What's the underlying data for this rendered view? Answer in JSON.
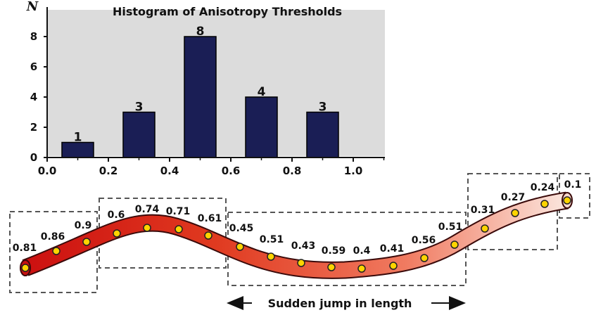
{
  "chart_data": {
    "type": "bar",
    "title": "Histogram of Anisotropy Thresholds",
    "ylabel": "N",
    "xlabel": "",
    "x": [
      0.1,
      0.3,
      0.5,
      0.7,
      0.9
    ],
    "values": [
      1,
      3,
      8,
      4,
      3
    ],
    "data_labels": [
      "1",
      "3",
      "8",
      "4",
      "3"
    ],
    "xlim": [
      0.0,
      1.1
    ],
    "ylim": [
      0,
      10
    ],
    "xticks": [
      "0.0",
      "0.2",
      "0.4",
      "0.6",
      "0.8",
      "1.0"
    ],
    "yticks": [
      "0",
      "2",
      "4",
      "6",
      "8"
    ],
    "grid": false,
    "colors": {
      "bar": "#1a1e55",
      "plot_bg": "#dcdcdc"
    }
  },
  "filament": {
    "segment_values": [
      "0.81",
      "0.86",
      "0.9",
      "0.6",
      "0.74",
      "0.71",
      "0.61",
      "0.45",
      "0.51",
      "0.43",
      "0.59",
      "0.4",
      "0.41",
      "0.56",
      "0.51",
      "0.31",
      "0.27",
      "0.24",
      "0.1"
    ],
    "caption": "Sudden jump in length",
    "colors": {
      "tube_dark": "#d01010",
      "tube_light": "#f8e8e0",
      "dot": "#ffd400"
    }
  }
}
